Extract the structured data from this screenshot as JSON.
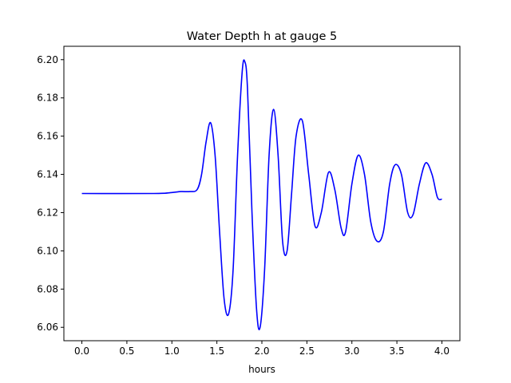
{
  "chart_data": {
    "type": "line",
    "title": "Water Depth h at gauge 5",
    "xlabel": "hours",
    "ylabel": "",
    "xlim": [
      -0.2,
      4.2
    ],
    "ylim": [
      6.053,
      6.207
    ],
    "grid": false,
    "x_ticks": [
      0.0,
      0.5,
      1.0,
      1.5,
      2.0,
      2.5,
      3.0,
      3.5,
      4.0
    ],
    "x_tick_labels": [
      "0.0",
      "0.5",
      "1.0",
      "1.5",
      "2.0",
      "2.5",
      "3.0",
      "3.5",
      "4.0"
    ],
    "y_ticks": [
      6.06,
      6.08,
      6.1,
      6.12,
      6.14,
      6.16,
      6.18,
      6.2
    ],
    "y_tick_labels": [
      "6.06",
      "6.08",
      "6.10",
      "6.12",
      "6.14",
      "6.16",
      "6.18",
      "6.20"
    ],
    "series": [
      {
        "color": "#0000ff",
        "x": [
          0.0,
          0.8,
          1.0,
          1.1,
          1.2,
          1.28,
          1.33,
          1.38,
          1.43,
          1.48,
          1.53,
          1.58,
          1.63,
          1.68,
          1.73,
          1.78,
          1.81,
          1.84,
          1.89,
          1.94,
          1.98,
          2.03,
          2.08,
          2.13,
          2.18,
          2.23,
          2.28,
          2.33,
          2.38,
          2.45,
          2.52,
          2.59,
          2.66,
          2.74,
          2.81,
          2.88,
          2.93,
          3.0,
          3.07,
          3.14,
          3.21,
          3.28,
          3.35,
          3.42,
          3.48,
          3.55,
          3.62,
          3.68,
          3.75,
          3.82,
          3.89,
          3.95,
          4.0
        ],
        "values": [
          6.13,
          6.13,
          6.1305,
          6.131,
          6.131,
          6.132,
          6.14,
          6.157,
          6.167,
          6.15,
          6.11,
          6.075,
          6.067,
          6.09,
          6.15,
          6.193,
          6.199,
          6.185,
          6.12,
          6.07,
          6.06,
          6.09,
          6.15,
          6.174,
          6.15,
          6.105,
          6.1,
          6.13,
          6.16,
          6.168,
          6.14,
          6.113,
          6.12,
          6.141,
          6.132,
          6.112,
          6.11,
          6.135,
          6.15,
          6.14,
          6.115,
          6.105,
          6.11,
          6.135,
          6.145,
          6.14,
          6.12,
          6.119,
          6.135,
          6.146,
          6.14,
          6.128,
          6.127
        ]
      }
    ]
  }
}
